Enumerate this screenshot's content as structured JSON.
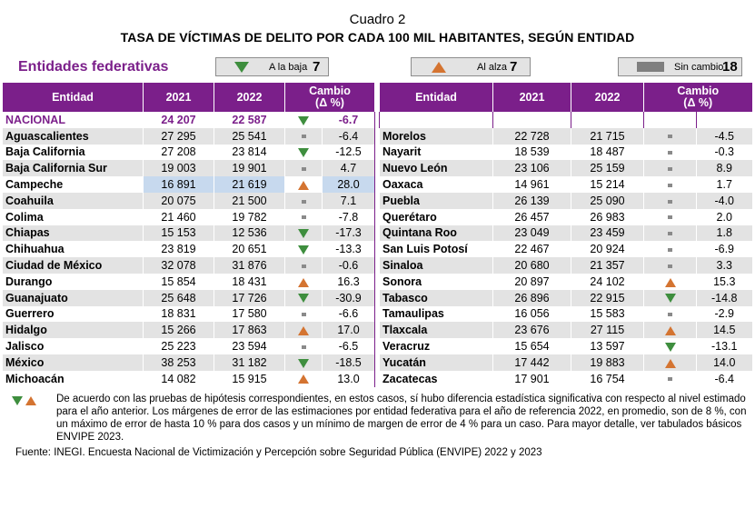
{
  "header": {
    "cuadro": "Cuadro 2",
    "title": "Tasa de víctimas de delito por cada 100 mil habitantes, según entidad",
    "title_display": "TASA DE VÍCTIMAS DE DELITO POR CADA 100 MIL HABITANTES, SEGÚN ENTIDAD"
  },
  "legend": {
    "label": "Entidades federativas",
    "down_label": "A la baja",
    "down_count": "7",
    "up_label": "Al alza",
    "up_count": "7",
    "nochange_label": "Sin cambio",
    "nochange_count": "18"
  },
  "colors": {
    "accent": "#7b1f8a",
    "row_shade": "#e3e3e3",
    "down": "#3e8e3e",
    "up": "#d47431",
    "highlight": "#c7d9ee"
  },
  "columns": {
    "entity": "Entidad",
    "y2021": "2021",
    "y2022": "2022",
    "change": "Cambio",
    "change_unit": "(Δ %)"
  },
  "national": {
    "entity": "NACIONAL",
    "v2021": "24 207",
    "v2022": "22 587",
    "trend": "down",
    "change": "-6.7"
  },
  "left_rows": [
    {
      "entity": "Aguascalientes",
      "v2021": "27 295",
      "v2022": "25 541",
      "trend": "none",
      "change": "-6.4"
    },
    {
      "entity": "Baja California",
      "v2021": "27 208",
      "v2022": "23 814",
      "trend": "down",
      "change": "-12.5"
    },
    {
      "entity": "Baja California Sur",
      "v2021": "19 003",
      "v2022": "19 901",
      "trend": "none",
      "change": "4.7"
    },
    {
      "entity": "Campeche",
      "v2021": "16 891",
      "v2022": "21 619",
      "trend": "up",
      "change": "28.0",
      "highlight": true
    },
    {
      "entity": "Coahuila",
      "v2021": "20 075",
      "v2022": "21 500",
      "trend": "none",
      "change": "7.1"
    },
    {
      "entity": "Colima",
      "v2021": "21 460",
      "v2022": "19 782",
      "trend": "none",
      "change": "-7.8"
    },
    {
      "entity": "Chiapas",
      "v2021": "15 153",
      "v2022": "12 536",
      "trend": "down",
      "change": "-17.3"
    },
    {
      "entity": "Chihuahua",
      "v2021": "23 819",
      "v2022": "20 651",
      "trend": "down",
      "change": "-13.3"
    },
    {
      "entity": "Ciudad de México",
      "v2021": "32 078",
      "v2022": "31 876",
      "trend": "none",
      "change": "-0.6"
    },
    {
      "entity": "Durango",
      "v2021": "15 854",
      "v2022": "18 431",
      "trend": "up",
      "change": "16.3"
    },
    {
      "entity": "Guanajuato",
      "v2021": "25 648",
      "v2022": "17 726",
      "trend": "down",
      "change": "-30.9"
    },
    {
      "entity": "Guerrero",
      "v2021": "18 831",
      "v2022": "17 580",
      "trend": "none",
      "change": "-6.6"
    },
    {
      "entity": "Hidalgo",
      "v2021": "15 266",
      "v2022": "17 863",
      "trend": "up",
      "change": "17.0"
    },
    {
      "entity": "Jalisco",
      "v2021": "25 223",
      "v2022": "23 594",
      "trend": "none",
      "change": "-6.5"
    },
    {
      "entity": "México",
      "v2021": "38 253",
      "v2022": "31 182",
      "trend": "down",
      "change": "-18.5"
    },
    {
      "entity": "Michoacán",
      "v2021": "14 082",
      "v2022": "15 915",
      "trend": "up",
      "change": "13.0"
    }
  ],
  "right_rows": [
    {
      "entity": "Morelos",
      "v2021": "22 728",
      "v2022": "21 715",
      "trend": "none",
      "change": "-4.5"
    },
    {
      "entity": "Nayarit",
      "v2021": "18 539",
      "v2022": "18 487",
      "trend": "none",
      "change": "-0.3"
    },
    {
      "entity": "Nuevo León",
      "v2021": "23 106",
      "v2022": "25 159",
      "trend": "none",
      "change": "8.9"
    },
    {
      "entity": "Oaxaca",
      "v2021": "14 961",
      "v2022": "15 214",
      "trend": "none",
      "change": "1.7"
    },
    {
      "entity": "Puebla",
      "v2021": "26 139",
      "v2022": "25 090",
      "trend": "none",
      "change": "-4.0"
    },
    {
      "entity": "Querétaro",
      "v2021": "26 457",
      "v2022": "26 983",
      "trend": "none",
      "change": "2.0"
    },
    {
      "entity": "Quintana Roo",
      "v2021": "23 049",
      "v2022": "23 459",
      "trend": "none",
      "change": "1.8"
    },
    {
      "entity": "San Luis Potosí",
      "v2021": "22 467",
      "v2022": "20 924",
      "trend": "none",
      "change": "-6.9"
    },
    {
      "entity": "Sinaloa",
      "v2021": "20 680",
      "v2022": "21 357",
      "trend": "none",
      "change": "3.3"
    },
    {
      "entity": "Sonora",
      "v2021": "20 897",
      "v2022": "24 102",
      "trend": "up",
      "change": "15.3"
    },
    {
      "entity": "Tabasco",
      "v2021": "26 896",
      "v2022": "22 915",
      "trend": "down",
      "change": "-14.8"
    },
    {
      "entity": "Tamaulipas",
      "v2021": "16 056",
      "v2022": "15 583",
      "trend": "none",
      "change": "-2.9"
    },
    {
      "entity": "Tlaxcala",
      "v2021": "23 676",
      "v2022": "27 115",
      "trend": "up",
      "change": "14.5"
    },
    {
      "entity": "Veracruz",
      "v2021": "15 654",
      "v2022": "13 597",
      "trend": "down",
      "change": "-13.1"
    },
    {
      "entity": "Yucatán",
      "v2021": "17 442",
      "v2022": "19 883",
      "trend": "up",
      "change": "14.0"
    },
    {
      "entity": "Zacatecas",
      "v2021": "17 901",
      "v2022": "16 754",
      "trend": "none",
      "change": "-6.4"
    }
  ],
  "footnote": "De acuerdo con las pruebas de hipótesis correspondientes, en estos casos, sí hubo diferencia estadística significativa con respecto al nivel estimado para el año anterior. Los márgenes de error de las estimaciones por entidad federativa para el año de referencia 2022, en promedio, son de 8 %, con un máximo de error de hasta 10 % para dos casos y un mínimo de margen de error de 4 % para un caso. Para mayor detalle, ver tabulados básicos ENVIPE 2023.",
  "source": "Fuente: INEGI. Encuesta Nacional de Victimización y Percepción sobre Seguridad Pública (ENVIPE) 2022 y 2023"
}
